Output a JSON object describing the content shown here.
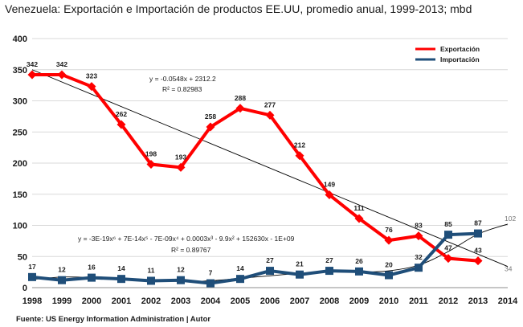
{
  "title": "Venezuela: Exportación e Importación de productos EE.UU, promedio anual, 1999-2013; mbd",
  "source": "Fuente: US Energy Information Administration  |  Autor",
  "chart_data": {
    "type": "line",
    "categories": [
      "1998",
      "1999",
      "2000",
      "2001",
      "2002",
      "2003",
      "2004",
      "2005",
      "2006",
      "2007",
      "2008",
      "2009",
      "2010",
      "2011",
      "2012",
      "2013",
      "2014"
    ],
    "ylim": [
      0,
      400
    ],
    "yticks": [
      "0",
      "50",
      "100",
      "150",
      "200",
      "250",
      "300",
      "350",
      "400"
    ],
    "grid": true,
    "legend_position": "top-right",
    "series": [
      {
        "name": "Exportación",
        "color": "#ff0000",
        "marker": "diamond",
        "x": [
          "1998",
          "1999",
          "2000",
          "2001",
          "2002",
          "2003",
          "2004",
          "2005",
          "2006",
          "2007",
          "2008",
          "2009",
          "2010",
          "2011",
          "2012",
          "2013"
        ],
        "values": [
          342,
          342,
          323,
          262,
          198,
          193,
          258,
          288,
          277,
          212,
          149,
          111,
          76,
          83,
          47,
          43
        ],
        "labels": [
          "342",
          "342",
          "323",
          "262",
          "198",
          "193",
          "258",
          "288",
          "277",
          "212",
          "149",
          "111",
          "76",
          "83",
          "47",
          "43"
        ]
      },
      {
        "name": "Importación",
        "color": "#1f4e79",
        "marker": "square",
        "x": [
          "1998",
          "1999",
          "2000",
          "2001",
          "2002",
          "2003",
          "2004",
          "2005",
          "2006",
          "2007",
          "2008",
          "2009",
          "2010",
          "2011",
          "2012",
          "2013"
        ],
        "values": [
          17,
          12,
          16,
          14,
          11,
          12,
          7,
          14,
          27,
          21,
          27,
          26,
          20,
          32,
          85,
          87
        ],
        "labels": [
          "17",
          "12",
          "16",
          "14",
          "11",
          "12",
          "7",
          "14",
          "27",
          "21",
          "27",
          "26",
          "20",
          "32",
          "85",
          "87"
        ]
      }
    ],
    "trendlines": [
      {
        "of": "Exportación",
        "kind": "linear",
        "equation": "y = -0.0548x + 2312.2",
        "r2": "R² = 0.82983",
        "x": [
          "1998",
          "2014"
        ],
        "values": [
          350,
          34
        ],
        "end_label": "34"
      },
      {
        "of": "Importación",
        "kind": "polynomial",
        "equation": "y = -3E-19x⁶ + 7E-14x⁵ - 7E-09x⁴ + 0.0003x³ - 9.9x² + 152630x - 1E+09",
        "r2": "R² = 0.89767",
        "x": [
          "1998",
          "1999",
          "2000",
          "2001",
          "2002",
          "2003",
          "2004",
          "2005",
          "2006",
          "2007",
          "2008",
          "2009",
          "2010",
          "2011",
          "2012",
          "2013",
          "2014"
        ],
        "values": [
          13,
          17,
          16,
          13,
          11,
          10,
          11,
          15,
          19,
          23,
          25,
          25,
          27,
          36,
          58,
          86,
          102
        ],
        "end_label": "102"
      }
    ]
  }
}
